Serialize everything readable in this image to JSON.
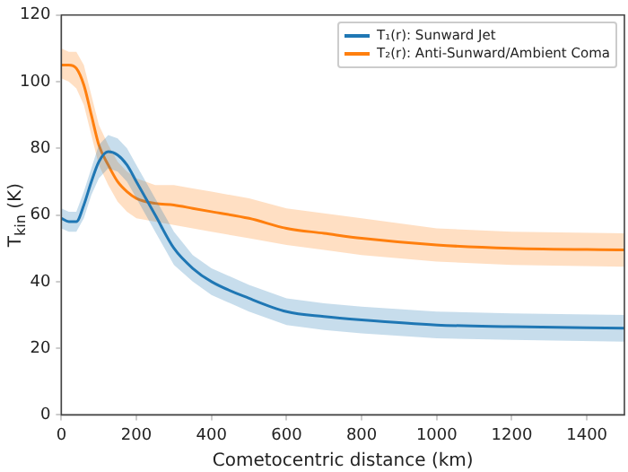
{
  "chart_data": {
    "type": "line",
    "xlabel": "Cometocentric distance (km)",
    "ylabel": "T$_{kin}$ (K)",
    "x": [
      0,
      20,
      40,
      60,
      80,
      100,
      125,
      150,
      175,
      200,
      250,
      300,
      350,
      400,
      500,
      600,
      700,
      800,
      1000,
      1200,
      1500
    ],
    "series": [
      {
        "name": "T₁(r): Sunward Jet",
        "color": "#1f77b4",
        "values": [
          59,
          58,
          58,
          63,
          70,
          76,
          79,
          78,
          75,
          70,
          60,
          50,
          44,
          40,
          35,
          31,
          29.5,
          28.5,
          27,
          26.5,
          26
        ],
        "lower": [
          56,
          55,
          55,
          59,
          66,
          71,
          74,
          73,
          70,
          65,
          55,
          45,
          40,
          36,
          31,
          27,
          25.5,
          24.5,
          23,
          22.5,
          22
        ],
        "upper": [
          62,
          61,
          61,
          67,
          74,
          81,
          84,
          83,
          80,
          75,
          65,
          55,
          48,
          44,
          39,
          35,
          33.5,
          32.5,
          31,
          30.5,
          30
        ]
      },
      {
        "name": "T₂(r): Anti-Sunward/Ambient Coma",
        "color": "#ff7f0e",
        "values": [
          105,
          105,
          104,
          99,
          90,
          81,
          75,
          70,
          67,
          65,
          63.5,
          63,
          62,
          61,
          59,
          56,
          54.5,
          53,
          51,
          50,
          49.5
        ],
        "lower": [
          101,
          100,
          98,
          93,
          84,
          75,
          69,
          64,
          61,
          59,
          58,
          57,
          56,
          55,
          53,
          51,
          49.5,
          48,
          46,
          45,
          44.5
        ],
        "upper": [
          110,
          109,
          109,
          105,
          96,
          87,
          81,
          76,
          73,
          71,
          69,
          69,
          68,
          67,
          65,
          62,
          60.5,
          59,
          56,
          55,
          54.5
        ]
      }
    ],
    "xlim": [
      0,
      1500
    ],
    "ylim": [
      0,
      120
    ],
    "xticks": [
      0,
      200,
      400,
      600,
      800,
      1000,
      1200,
      1400
    ],
    "yticks": [
      0,
      20,
      40,
      60,
      80,
      100,
      120
    ],
    "grid": false,
    "legend": "top right",
    "marker": "none",
    "line_style": "solid"
  }
}
